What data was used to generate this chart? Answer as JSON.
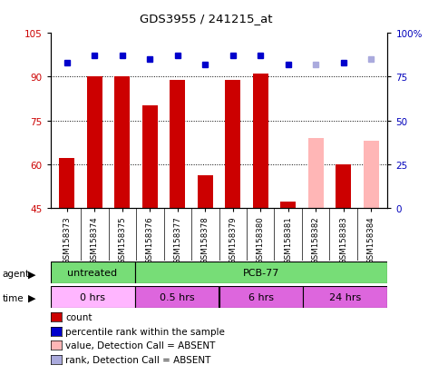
{
  "title": "GDS3955 / 241215_at",
  "samples": [
    "GSM158373",
    "GSM158374",
    "GSM158375",
    "GSM158376",
    "GSM158377",
    "GSM158378",
    "GSM158379",
    "GSM158380",
    "GSM158381",
    "GSM158382",
    "GSM158383",
    "GSM158384"
  ],
  "bar_heights": [
    62,
    90,
    90,
    80,
    89,
    56,
    89,
    91,
    47,
    69,
    60,
    68
  ],
  "bar_colors": [
    "#cc0000",
    "#cc0000",
    "#cc0000",
    "#cc0000",
    "#cc0000",
    "#cc0000",
    "#cc0000",
    "#cc0000",
    "#cc0000",
    "#ffb6b6",
    "#cc0000",
    "#ffb6b6"
  ],
  "rank_values": [
    83,
    87,
    87,
    85,
    87,
    82,
    87,
    87,
    82,
    82,
    83,
    85
  ],
  "rank_colors": [
    "#0000cc",
    "#0000cc",
    "#0000cc",
    "#0000cc",
    "#0000cc",
    "#0000cc",
    "#0000cc",
    "#0000cc",
    "#0000cc",
    "#aaaadd",
    "#0000cc",
    "#aaaadd"
  ],
  "ylim_left": [
    45,
    105
  ],
  "ylim_right": [
    0,
    100
  ],
  "yticks_left": [
    45,
    60,
    75,
    90,
    105
  ],
  "yticks_right": [
    0,
    25,
    50,
    75,
    100
  ],
  "ytick_labels_right": [
    "0",
    "25",
    "50",
    "75",
    "100%"
  ],
  "agent_groups": [
    {
      "label": "untreated",
      "start": 0,
      "end": 3
    },
    {
      "label": "PCB-77",
      "start": 3,
      "end": 12
    }
  ],
  "time_groups": [
    {
      "label": "0 hrs",
      "start": 0,
      "end": 3,
      "color": "#ffb6ff"
    },
    {
      "label": "0.5 hrs",
      "start": 3,
      "end": 6,
      "color": "#dd66dd"
    },
    {
      "label": "6 hrs",
      "start": 6,
      "end": 9,
      "color": "#dd66dd"
    },
    {
      "label": "24 hrs",
      "start": 9,
      "end": 12,
      "color": "#dd66dd"
    }
  ],
  "legend_items": [
    {
      "label": "count",
      "color": "#cc0000"
    },
    {
      "label": "percentile rank within the sample",
      "color": "#0000cc"
    },
    {
      "label": "value, Detection Call = ABSENT",
      "color": "#ffb6b6"
    },
    {
      "label": "rank, Detection Call = ABSENT",
      "color": "#aaaadd"
    }
  ],
  "bar_bottom": 45,
  "bar_width": 0.55,
  "rank_marker_size": 5,
  "left_tick_color": "#cc0000",
  "right_tick_color": "#0000bb",
  "agent_color": "#77dd77",
  "xticklabel_bg": "#cccccc",
  "fig_width": 4.83,
  "fig_height": 4.14,
  "fig_dpi": 100
}
